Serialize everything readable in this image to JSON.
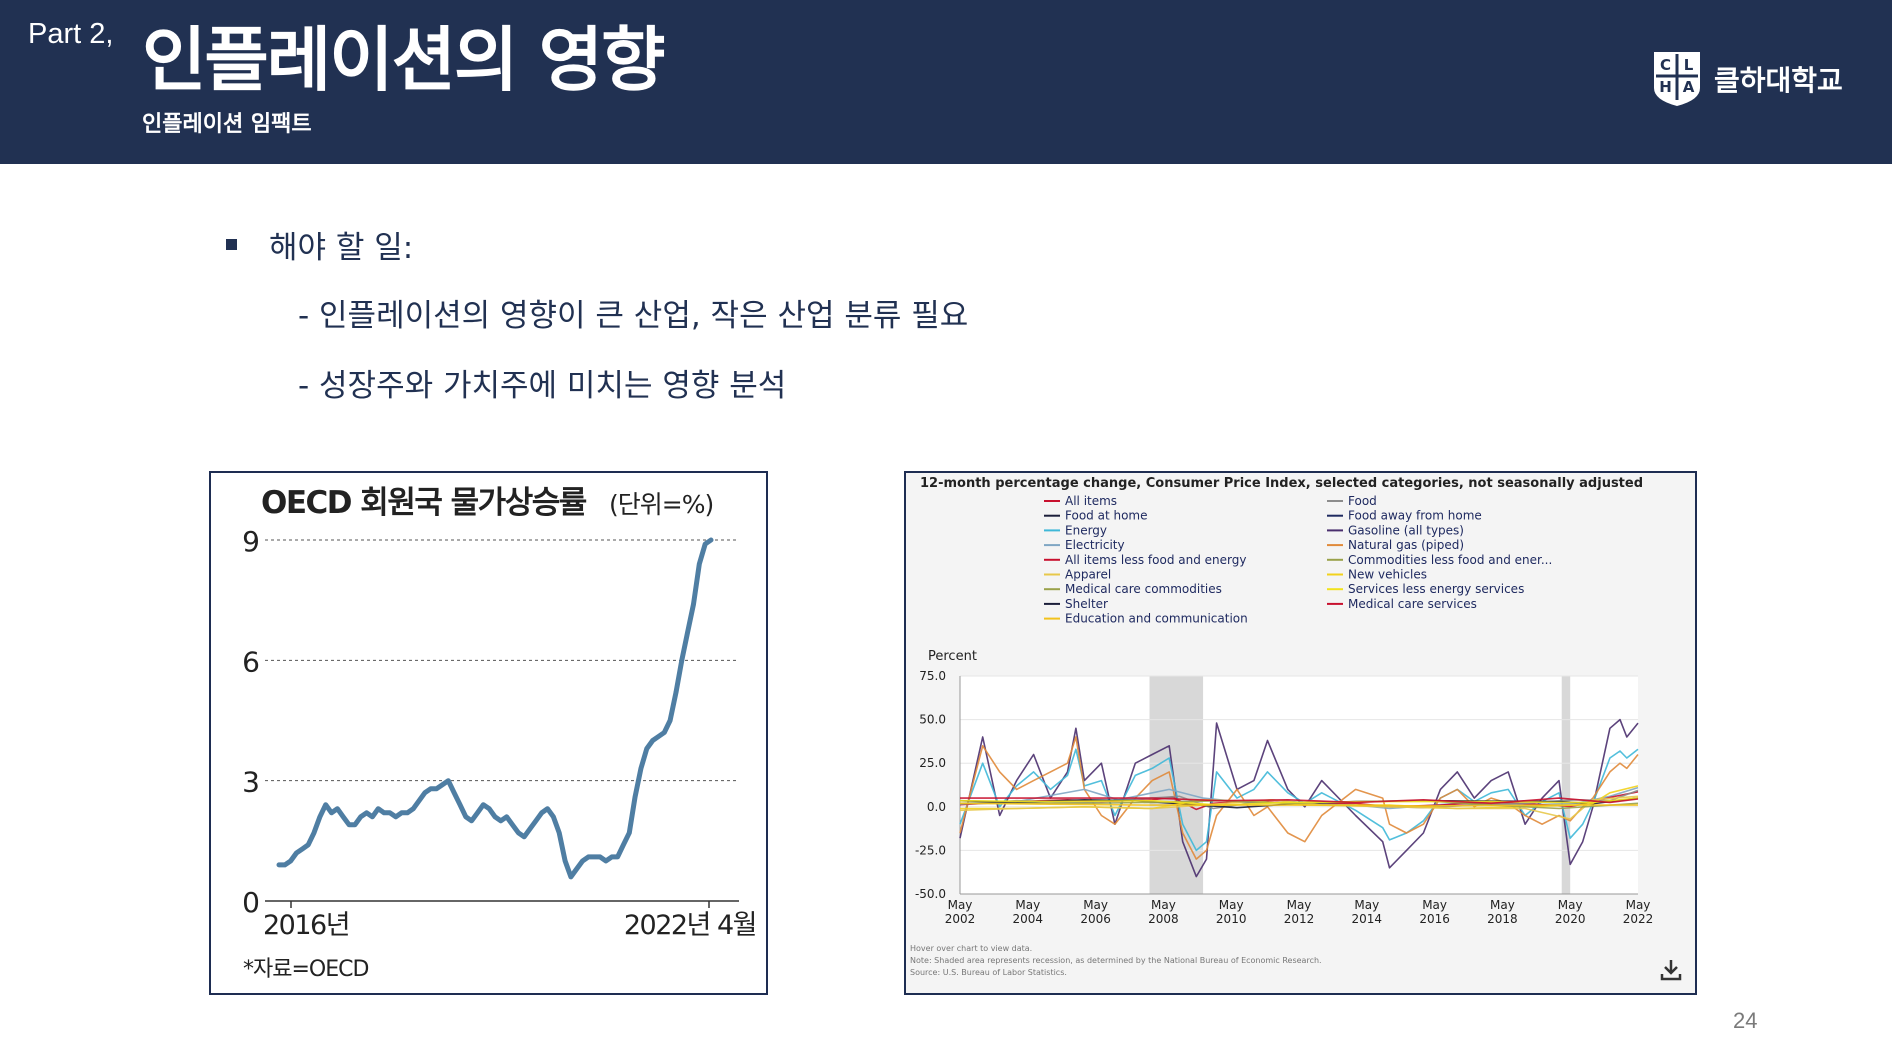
{
  "header": {
    "part_label": "Part 2,",
    "title": "인플레이션의 영향",
    "subtitle": "인플레이션 임팩트",
    "logo": {
      "letters": [
        "C",
        "L",
        "H",
        "A"
      ],
      "name": "클하대학교"
    },
    "background_color": "#213152"
  },
  "body": {
    "bullet_heading": "해야 할 일:",
    "items": [
      "- 인플레이션의 영향이 큰 산업, 작은 산업 분류 필요",
      "- 성장주와 가치주에  미치는 영향 분석"
    ]
  },
  "page_number": "24",
  "chart_data": [
    {
      "type": "line",
      "title": "OECD 회원국 물가상승률",
      "unit_note": "(단위=%)",
      "source": "*자료=OECD",
      "x_start_label": "2016년",
      "x_end_label": "2022년 4월",
      "yticks": [
        0,
        3,
        6,
        9
      ],
      "ylim": [
        0,
        9
      ],
      "grid": true,
      "color": "#4f7ea3",
      "series": [
        {
          "values": [
            0.9,
            0.9,
            1.0,
            1.2,
            1.3,
            1.4,
            1.7,
            2.1,
            2.4,
            2.2,
            2.3,
            2.1,
            1.9,
            1.9,
            2.1,
            2.2,
            2.1,
            2.3,
            2.2,
            2.2,
            2.1,
            2.2,
            2.2,
            2.3,
            2.5,
            2.7,
            2.8,
            2.8,
            2.9,
            3.0,
            2.7,
            2.4,
            2.1,
            2.0,
            2.2,
            2.4,
            2.3,
            2.1,
            2.0,
            2.1,
            1.9,
            1.7,
            1.6,
            1.8,
            2.0,
            2.2,
            2.3,
            2.1,
            1.7,
            1.0,
            0.6,
            0.8,
            1.0,
            1.1,
            1.1,
            1.1,
            1.0,
            1.1,
            1.1,
            1.4,
            1.7,
            2.6,
            3.3,
            3.8,
            4.0,
            4.1,
            4.2,
            4.5,
            5.2,
            6.0,
            6.7,
            7.4,
            8.4,
            8.9,
            9.0
          ]
        }
      ]
    },
    {
      "type": "line",
      "title": "12-month percentage change, Consumer Price Index, selected categories, not seasonally adjusted",
      "ylabel": "Percent",
      "yticks": [
        "75.0",
        "50.0",
        "25.0",
        "0.0",
        "-25.0",
        "-50.0"
      ],
      "ylim": [
        -50,
        75
      ],
      "xlim": [
        2002.33,
        2022.33
      ],
      "xtick_month": "May",
      "xticks": [
        "2002",
        "2004",
        "2006",
        "2008",
        "2010",
        "2012",
        "2014",
        "2016",
        "2018",
        "2020",
        "2022"
      ],
      "recessions": [
        [
          2007.92,
          2009.5
        ],
        [
          2020.08,
          2020.33
        ]
      ],
      "legend": [
        {
          "name": "All items",
          "color": "#c8102e"
        },
        {
          "name": "Food",
          "color": "#8c8c8c"
        },
        {
          "name": "Food at home",
          "color": "#1b1f3a"
        },
        {
          "name": "Food away from home",
          "color": "#1f2a60"
        },
        {
          "name": "Energy",
          "color": "#3fb8d8"
        },
        {
          "name": "Gasoline (all types)",
          "color": "#4a2f6e"
        },
        {
          "name": "Electricity",
          "color": "#7fa6c4"
        },
        {
          "name": "Natural gas (piped)",
          "color": "#e08a3a"
        },
        {
          "name": "All items less food and energy",
          "color": "#c8102e"
        },
        {
          "name": "Commodities less food and ener...",
          "color": "#9aa14a"
        },
        {
          "name": "Apparel",
          "color": "#e7c84a"
        },
        {
          "name": "New vehicles",
          "color": "#f2d21c"
        },
        {
          "name": "Medical care commodities",
          "color": "#9aa14a"
        },
        {
          "name": "Services less energy services",
          "color": "#f2e21c"
        },
        {
          "name": "Shelter",
          "color": "#1b1f3a"
        },
        {
          "name": "Medical care services",
          "color": "#c8102e"
        },
        {
          "name": "Education and communication",
          "color": "#f2c21c"
        }
      ],
      "notes": [
        "Hover over chart to view data.",
        "Note: Shaded area represents recession, as determined by the National Bureau of Economic Research.",
        "Source: U.S. Bureau of Labor Statistics."
      ],
      "series": [
        {
          "name": "Gasoline (all types)",
          "color": "#4a2f6e",
          "x": [
            2002.33,
            2003.0,
            2003.5,
            2004.0,
            2004.5,
            2005.0,
            2005.5,
            2005.75,
            2006.0,
            2006.5,
            2006.9,
            2007.5,
            2008.0,
            2008.5,
            2008.9,
            2009.3,
            2009.6,
            2009.9,
            2010.5,
            2011.0,
            2011.4,
            2012.0,
            2012.5,
            2013.0,
            2014.0,
            2014.8,
            2015.0,
            2015.5,
            2016.0,
            2016.5,
            2017.0,
            2017.5,
            2018.0,
            2018.5,
            2019.0,
            2019.5,
            2020.0,
            2020.33,
            2020.7,
            2021.0,
            2021.5,
            2021.8,
            2022.0,
            2022.33
          ],
          "y": [
            -18,
            40,
            -5,
            15,
            30,
            5,
            20,
            45,
            15,
            25,
            -10,
            25,
            30,
            35,
            -20,
            -40,
            -30,
            48,
            10,
            15,
            38,
            10,
            0,
            15,
            -5,
            -20,
            -35,
            -25,
            -15,
            10,
            20,
            5,
            15,
            20,
            -10,
            5,
            15,
            -33,
            -20,
            0,
            45,
            50,
            40,
            48
          ]
        },
        {
          "name": "Energy",
          "color": "#3fb8d8",
          "x": [
            2002.33,
            2003.0,
            2003.5,
            2004.0,
            2004.5,
            2005.0,
            2005.5,
            2005.75,
            2006.0,
            2006.5,
            2006.9,
            2007.5,
            2008.0,
            2008.5,
            2008.9,
            2009.3,
            2009.6,
            2009.9,
            2010.5,
            2011.0,
            2011.4,
            2012.0,
            2012.5,
            2013.0,
            2014.0,
            2014.8,
            2015.0,
            2015.5,
            2016.0,
            2016.5,
            2017.0,
            2017.5,
            2018.0,
            2018.5,
            2019.0,
            2019.5,
            2020.0,
            2020.33,
            2020.7,
            2021.0,
            2021.5,
            2021.8,
            2022.0,
            2022.33
          ],
          "y": [
            -10,
            25,
            0,
            12,
            20,
            10,
            18,
            33,
            12,
            15,
            -5,
            18,
            22,
            28,
            -10,
            -25,
            -20,
            20,
            5,
            10,
            20,
            8,
            2,
            8,
            -2,
            -12,
            -19,
            -15,
            -8,
            5,
            10,
            3,
            8,
            10,
            -5,
            3,
            8,
            -18,
            -10,
            2,
            28,
            32,
            28,
            33
          ]
        },
        {
          "name": "Natural gas (piped)",
          "color": "#e08a3a",
          "x": [
            2002.33,
            2003.0,
            2003.5,
            2004.0,
            2004.5,
            2005.0,
            2005.5,
            2005.75,
            2006.0,
            2006.5,
            2006.9,
            2007.5,
            2008.0,
            2008.5,
            2008.9,
            2009.3,
            2009.6,
            2009.9,
            2010.5,
            2011.0,
            2011.4,
            2012.0,
            2012.5,
            2013.0,
            2014.0,
            2014.8,
            2015.0,
            2015.5,
            2016.0,
            2016.5,
            2017.0,
            2017.5,
            2018.0,
            2018.5,
            2019.0,
            2019.5,
            2020.0,
            2020.33,
            2020.7,
            2021.0,
            2021.5,
            2021.8,
            2022.0,
            2022.33
          ],
          "y": [
            -15,
            35,
            20,
            10,
            15,
            20,
            25,
            40,
            10,
            -5,
            -10,
            5,
            15,
            20,
            -15,
            -30,
            -25,
            -5,
            10,
            -5,
            0,
            -15,
            -20,
            -5,
            10,
            5,
            -10,
            -15,
            -10,
            5,
            10,
            0,
            5,
            2,
            -5,
            -10,
            -5,
            -8,
            0,
            5,
            20,
            25,
            22,
            30
          ]
        },
        {
          "name": "Electricity",
          "color": "#7fa6c4",
          "x": [
            2002.33,
            2004.0,
            2006.0,
            2007.0,
            2008.5,
            2009.5,
            2011.0,
            2013.0,
            2015.0,
            2017.0,
            2019.0,
            2020.5,
            2021.5,
            2022.33
          ],
          "y": [
            2,
            3,
            10,
            4,
            10,
            5,
            2,
            3,
            -1,
            2,
            1,
            2,
            6,
            11
          ]
        },
        {
          "name": "All items",
          "color": "#c8102e",
          "x": [
            2002.33,
            2004.0,
            2005.5,
            2006.5,
            2008.0,
            2008.6,
            2009.3,
            2009.8,
            2011.0,
            2012.0,
            2014.0,
            2015.0,
            2016.5,
            2018.0,
            2019.0,
            2020.33,
            2021.0,
            2021.5,
            2022.33
          ],
          "y": [
            1.2,
            3,
            4,
            3,
            4,
            5.5,
            -1.5,
            2,
            3.5,
            2,
            2,
            0,
            1,
            2.8,
            1.8,
            0.2,
            2.5,
            5.4,
            8.6
          ]
        },
        {
          "name": "Food",
          "color": "#8c8c8c",
          "x": [
            2002.33,
            2004.0,
            2006.0,
            2008.0,
            2008.8,
            2009.8,
            2011.5,
            2013.0,
            2016.0,
            2017.5,
            2019.0,
            2020.5,
            2021.5,
            2022.33
          ],
          "y": [
            1.5,
            3.5,
            2.5,
            5,
            6,
            -1,
            4,
            1.5,
            -0.5,
            1,
            2,
            4,
            3.5,
            9.4
          ]
        },
        {
          "name": "Shelter",
          "color": "#1b1f3a",
          "x": [
            2002.33,
            2004.0,
            2006.0,
            2007.5,
            2009.0,
            2010.5,
            2012.0,
            2014.0,
            2016.0,
            2018.0,
            2020.0,
            2021.0,
            2022.33
          ],
          "y": [
            3.5,
            2.5,
            4,
            3.5,
            1.5,
            -0.5,
            1.5,
            3,
            3.5,
            3.3,
            3,
            1.8,
            5
          ]
        },
        {
          "name": "New vehicles",
          "color": "#f2d21c",
          "x": [
            2002.33,
            2004.0,
            2006.0,
            2008.0,
            2009.5,
            2011.0,
            2013.0,
            2015.0,
            2017.0,
            2019.0,
            2020.5,
            2021.0,
            2021.5,
            2022.33
          ],
          "y": [
            -1,
            -1,
            0,
            -1,
            4,
            3,
            1,
            1,
            -1,
            0,
            1,
            2,
            8,
            12
          ]
        },
        {
          "name": "Apparel",
          "color": "#e7c84a",
          "x": [
            2002.33,
            2004.0,
            2006.0,
            2008.0,
            2009.5,
            2011.5,
            2013.0,
            2015.0,
            2017.0,
            2019.0,
            2020.33,
            2021.0,
            2022.33
          ],
          "y": [
            -2,
            -1,
            0,
            -1,
            1,
            4,
            1,
            0,
            -1,
            -1,
            -7,
            4,
            6
          ]
        },
        {
          "name": "Medical care commodities",
          "color": "#9aa14a",
          "x": [
            2002.33,
            2004.0,
            2006.0,
            2008.0,
            2010.0,
            2012.0,
            2014.0,
            2016.0,
            2018.0,
            2020.0,
            2022.33
          ],
          "y": [
            2,
            2,
            2,
            2.5,
            3.5,
            2,
            3,
            3.5,
            1,
            -1,
            2
          ]
        },
        {
          "name": "Services less energy services",
          "color": "#f2e21c",
          "x": [
            2002.33,
            2005.0,
            2008.0,
            2010.0,
            2012.0,
            2015.0,
            2018.0,
            2020.0,
            2021.0,
            2022.33
          ],
          "y": [
            3.5,
            3,
            3.5,
            1,
            2.5,
            3,
            3,
            2.5,
            2.5,
            5
          ]
        },
        {
          "name": "Medical care services",
          "color": "#c8102e",
          "x": [
            2002.33,
            2005.0,
            2008.0,
            2010.0,
            2012.0,
            2014.0,
            2016.0,
            2018.0,
            2020.0,
            2021.5,
            2022.33
          ],
          "y": [
            5,
            5,
            5,
            3.5,
            4,
            2.5,
            4,
            2,
            5,
            2.5,
            4.5
          ]
        },
        {
          "name": "Education and communication",
          "color": "#f2c21c",
          "x": [
            2002.33,
            2005.0,
            2008.0,
            2012.0,
            2016.0,
            2020.0,
            2022.33
          ],
          "y": [
            2,
            1.5,
            1,
            1,
            0.5,
            1,
            1
          ]
        }
      ]
    }
  ]
}
